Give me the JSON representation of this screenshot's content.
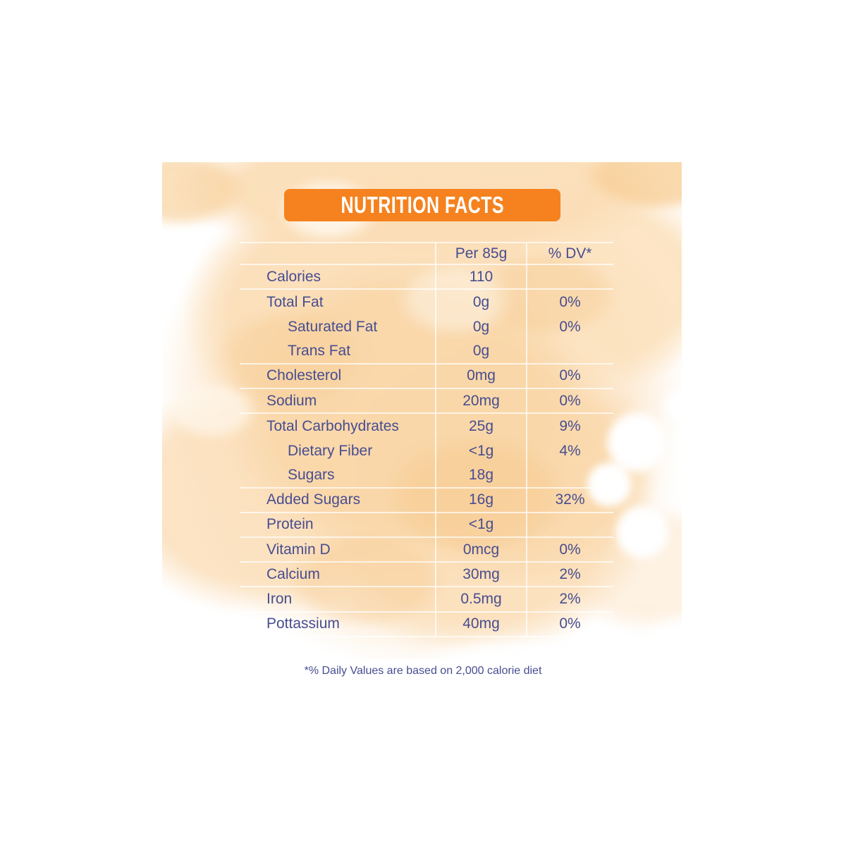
{
  "title_bar": {
    "label": "NUTRITION FACTS"
  },
  "table": {
    "col_headers": {
      "amount": "Per 85g",
      "dv": "% DV*"
    },
    "rows": [
      {
        "label": "Calories",
        "amount": "110",
        "dv": "",
        "indent": false,
        "line_below": true
      },
      {
        "label": "Total Fat",
        "amount": "0g",
        "dv": "0%",
        "indent": false,
        "line_below": false
      },
      {
        "label": "Saturated Fat",
        "amount": "0g",
        "dv": "0%",
        "indent": true,
        "line_below": false
      },
      {
        "label": "Trans Fat",
        "amount": "0g",
        "dv": "",
        "indent": true,
        "line_below": true
      },
      {
        "label": "Cholesterol",
        "amount": "0mg",
        "dv": "0%",
        "indent": false,
        "line_below": true
      },
      {
        "label": "Sodium",
        "amount": "20mg",
        "dv": "0%",
        "indent": false,
        "line_below": true
      },
      {
        "label": "Total Carbohydrates",
        "amount": "25g",
        "dv": "9%",
        "indent": false,
        "line_below": false
      },
      {
        "label": "Dietary Fiber",
        "amount": "<1g",
        "dv": "4%",
        "indent": true,
        "line_below": false
      },
      {
        "label": "Sugars",
        "amount": "18g",
        "dv": "",
        "indent": true,
        "line_below": true
      },
      {
        "label": "Added Sugars",
        "amount": "16g",
        "dv": "32%",
        "indent": false,
        "line_below": true
      },
      {
        "label": "Protein",
        "amount": "<1g",
        "dv": "",
        "indent": false,
        "line_below": true
      },
      {
        "label": "Vitamin D",
        "amount": "0mcg",
        "dv": "0%",
        "indent": false,
        "line_below": true
      },
      {
        "label": "Calcium",
        "amount": "30mg",
        "dv": "2%",
        "indent": false,
        "line_below": true
      },
      {
        "label": "Iron",
        "amount": "0.5mg",
        "dv": "2%",
        "indent": false,
        "line_below": true
      },
      {
        "label": "Pottassium",
        "amount": "40mg",
        "dv": "0%",
        "indent": false,
        "line_below": true
      }
    ]
  },
  "footnote": {
    "text": "*% Daily Values are based on 2,000 calorie diet"
  },
  "colors": {
    "accent_orange": "#F5821F",
    "text_navy": "#474D90",
    "grid_line": "rgba(255,255,255,0.7)",
    "wash_base": "#FBDFBA",
    "wash_deep": "#F6CB92",
    "wash_light": "#FDEBD5"
  }
}
